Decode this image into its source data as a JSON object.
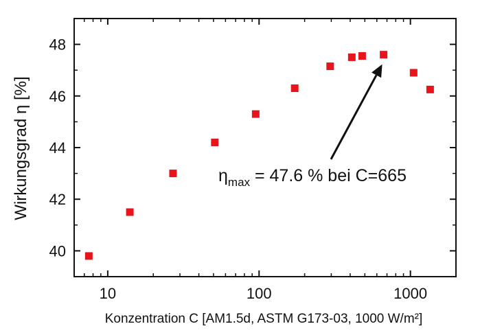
{
  "chart_data": {
    "type": "scatter",
    "xlabel": "Konzentration C [AM1.5d, ASTM G173-03, 1000 W/m²]",
    "ylabel": "Wirkungsgrad η [%]",
    "xscale": "log",
    "xlim": [
      6,
      2000
    ],
    "ylim": [
      39,
      49
    ],
    "xticks": [
      10,
      100,
      1000
    ],
    "xtick_labels": [
      "10",
      "100",
      "1000"
    ],
    "yticks": [
      40,
      42,
      44,
      46,
      48
    ],
    "ytick_labels": [
      "40",
      "42",
      "44",
      "46",
      "48"
    ],
    "grid": false,
    "marker_color": "#e8141c",
    "series": [
      {
        "x": [
          7.5,
          14,
          27,
          51,
          95,
          172,
          295,
          410,
          480,
          665,
          1050,
          1350
        ],
        "y": [
          39.8,
          41.5,
          43.0,
          44.2,
          45.3,
          46.3,
          47.15,
          47.5,
          47.55,
          47.6,
          46.9,
          46.25
        ]
      }
    ],
    "annotation": {
      "symbol": "η",
      "subscript": "max",
      "text": " = 47.6 % bei C=665",
      "target": {
        "x": 665,
        "y": 47.6
      }
    }
  }
}
